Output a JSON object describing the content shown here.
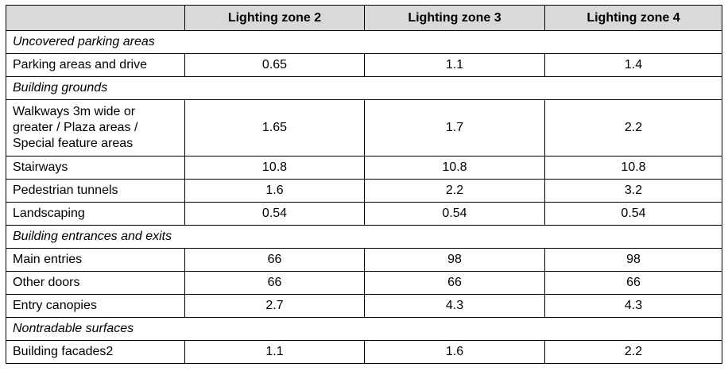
{
  "table": {
    "header": [
      "Lighting zone 2",
      "Lighting zone 3",
      "Lighting zone 4"
    ],
    "rows": [
      {
        "section": "Uncovered parking areas"
      },
      {
        "label": "Parking areas and drive",
        "values": [
          0.65,
          1.1,
          1.4
        ]
      },
      {
        "section": "Building grounds"
      },
      {
        "label": "Walkways 3m wide or greater / Plaza areas / Special feature areas",
        "values": [
          1.65,
          1.7,
          2.2
        ]
      },
      {
        "label": "Stairways",
        "values": [
          10.8,
          10.8,
          10.8
        ]
      },
      {
        "label": "Pedestrian tunnels",
        "values": [
          1.6,
          2.2,
          3.2
        ]
      },
      {
        "label": "Landscaping",
        "values": [
          0.54,
          0.54,
          0.54
        ]
      },
      {
        "section": "Building entrances and exits"
      },
      {
        "label": "Main entries",
        "values": [
          66,
          98,
          98
        ]
      },
      {
        "label": "Other doors",
        "values": [
          66,
          66,
          66
        ]
      },
      {
        "label": "Entry canopies",
        "values": [
          2.7,
          4.3,
          4.3
        ]
      },
      {
        "section": "Nontradable surfaces"
      },
      {
        "label": "Building facades2",
        "values": [
          1.1,
          1.6,
          2.2
        ]
      }
    ]
  }
}
